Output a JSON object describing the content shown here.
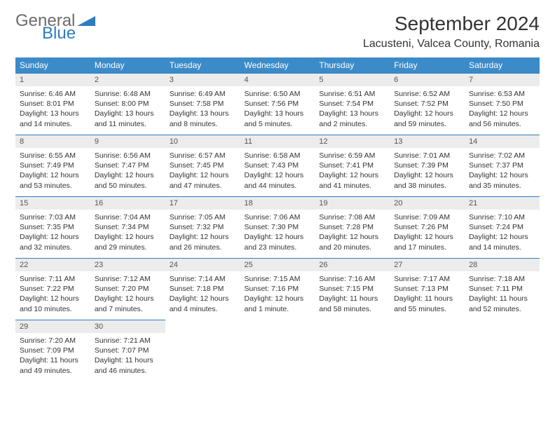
{
  "brand": {
    "general": "General",
    "blue": "Blue",
    "accent": "#2e7cc0"
  },
  "title": "September 2024",
  "location": "Lacusteni, Valcea County, Romania",
  "colors": {
    "header_bg": "#3b8bc9",
    "header_text": "#ffffff",
    "daynum_bg": "#ececec",
    "daynum_border": "#2e7cc0",
    "body_text": "#333333",
    "page_bg": "#ffffff"
  },
  "weekdays": [
    "Sunday",
    "Monday",
    "Tuesday",
    "Wednesday",
    "Thursday",
    "Friday",
    "Saturday"
  ],
  "days": [
    {
      "n": "1",
      "sr": "6:46 AM",
      "ss": "8:01 PM",
      "dl": "13 hours and 14 minutes."
    },
    {
      "n": "2",
      "sr": "6:48 AM",
      "ss": "8:00 PM",
      "dl": "13 hours and 11 minutes."
    },
    {
      "n": "3",
      "sr": "6:49 AM",
      "ss": "7:58 PM",
      "dl": "13 hours and 8 minutes."
    },
    {
      "n": "4",
      "sr": "6:50 AM",
      "ss": "7:56 PM",
      "dl": "13 hours and 5 minutes."
    },
    {
      "n": "5",
      "sr": "6:51 AM",
      "ss": "7:54 PM",
      "dl": "13 hours and 2 minutes."
    },
    {
      "n": "6",
      "sr": "6:52 AM",
      "ss": "7:52 PM",
      "dl": "12 hours and 59 minutes."
    },
    {
      "n": "7",
      "sr": "6:53 AM",
      "ss": "7:50 PM",
      "dl": "12 hours and 56 minutes."
    },
    {
      "n": "8",
      "sr": "6:55 AM",
      "ss": "7:49 PM",
      "dl": "12 hours and 53 minutes."
    },
    {
      "n": "9",
      "sr": "6:56 AM",
      "ss": "7:47 PM",
      "dl": "12 hours and 50 minutes."
    },
    {
      "n": "10",
      "sr": "6:57 AM",
      "ss": "7:45 PM",
      "dl": "12 hours and 47 minutes."
    },
    {
      "n": "11",
      "sr": "6:58 AM",
      "ss": "7:43 PM",
      "dl": "12 hours and 44 minutes."
    },
    {
      "n": "12",
      "sr": "6:59 AM",
      "ss": "7:41 PM",
      "dl": "12 hours and 41 minutes."
    },
    {
      "n": "13",
      "sr": "7:01 AM",
      "ss": "7:39 PM",
      "dl": "12 hours and 38 minutes."
    },
    {
      "n": "14",
      "sr": "7:02 AM",
      "ss": "7:37 PM",
      "dl": "12 hours and 35 minutes."
    },
    {
      "n": "15",
      "sr": "7:03 AM",
      "ss": "7:35 PM",
      "dl": "12 hours and 32 minutes."
    },
    {
      "n": "16",
      "sr": "7:04 AM",
      "ss": "7:34 PM",
      "dl": "12 hours and 29 minutes."
    },
    {
      "n": "17",
      "sr": "7:05 AM",
      "ss": "7:32 PM",
      "dl": "12 hours and 26 minutes."
    },
    {
      "n": "18",
      "sr": "7:06 AM",
      "ss": "7:30 PM",
      "dl": "12 hours and 23 minutes."
    },
    {
      "n": "19",
      "sr": "7:08 AM",
      "ss": "7:28 PM",
      "dl": "12 hours and 20 minutes."
    },
    {
      "n": "20",
      "sr": "7:09 AM",
      "ss": "7:26 PM",
      "dl": "12 hours and 17 minutes."
    },
    {
      "n": "21",
      "sr": "7:10 AM",
      "ss": "7:24 PM",
      "dl": "12 hours and 14 minutes."
    },
    {
      "n": "22",
      "sr": "7:11 AM",
      "ss": "7:22 PM",
      "dl": "12 hours and 10 minutes."
    },
    {
      "n": "23",
      "sr": "7:12 AM",
      "ss": "7:20 PM",
      "dl": "12 hours and 7 minutes."
    },
    {
      "n": "24",
      "sr": "7:14 AM",
      "ss": "7:18 PM",
      "dl": "12 hours and 4 minutes."
    },
    {
      "n": "25",
      "sr": "7:15 AM",
      "ss": "7:16 PM",
      "dl": "12 hours and 1 minute."
    },
    {
      "n": "26",
      "sr": "7:16 AM",
      "ss": "7:15 PM",
      "dl": "11 hours and 58 minutes."
    },
    {
      "n": "27",
      "sr": "7:17 AM",
      "ss": "7:13 PM",
      "dl": "11 hours and 55 minutes."
    },
    {
      "n": "28",
      "sr": "7:18 AM",
      "ss": "7:11 PM",
      "dl": "11 hours and 52 minutes."
    },
    {
      "n": "29",
      "sr": "7:20 AM",
      "ss": "7:09 PM",
      "dl": "11 hours and 49 minutes."
    },
    {
      "n": "30",
      "sr": "7:21 AM",
      "ss": "7:07 PM",
      "dl": "11 hours and 46 minutes."
    }
  ],
  "labels": {
    "sunrise": "Sunrise:",
    "sunset": "Sunset:",
    "daylight": "Daylight:"
  },
  "layout": {
    "cols": 7,
    "rows": 5,
    "start_weekday": 0
  }
}
